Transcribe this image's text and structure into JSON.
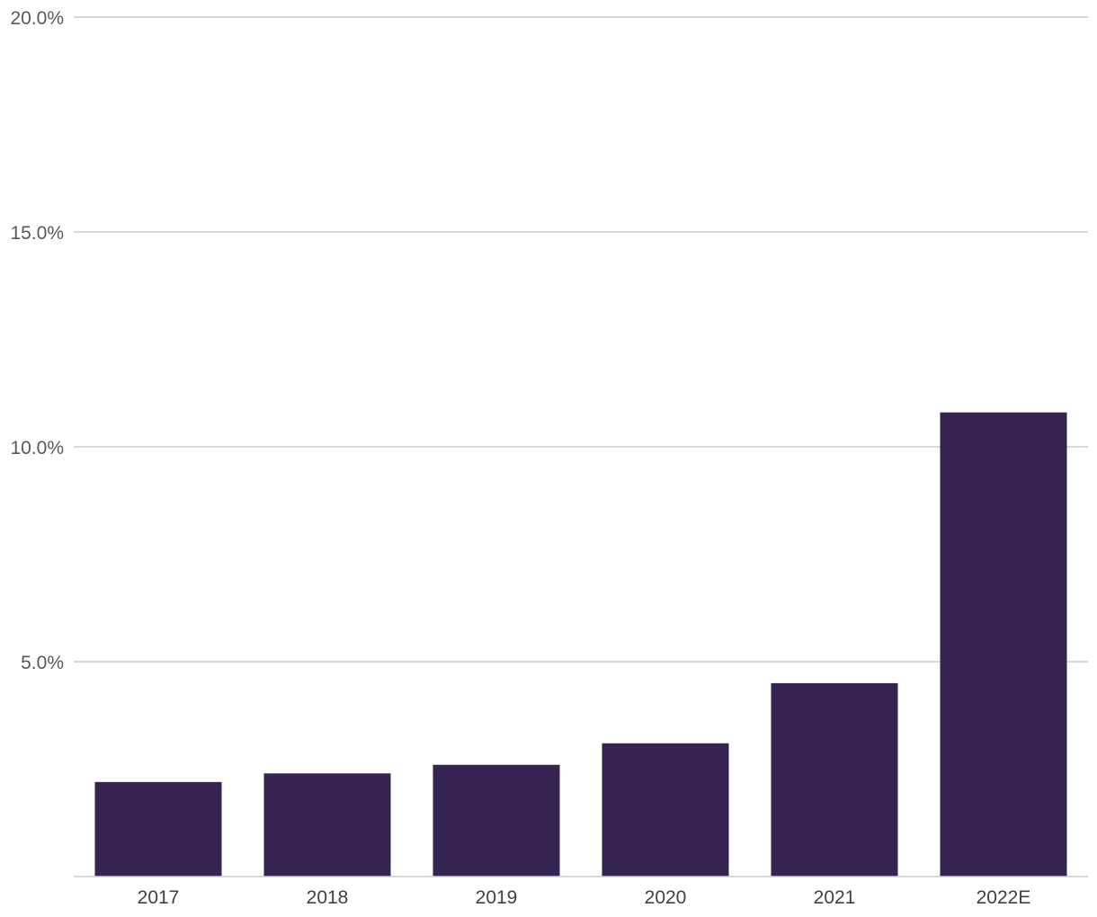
{
  "chart_data": {
    "type": "bar",
    "title": "",
    "xlabel": "",
    "ylabel": "",
    "categories": [
      "2017",
      "2018",
      "2019",
      "2020",
      "2021",
      "2022E"
    ],
    "series": [
      {
        "values": [
          2.2,
          2.4,
          2.6,
          3.1,
          4.5,
          10.8
        ]
      }
    ],
    "ylim": [
      0,
      20
    ],
    "yticks": [
      {
        "value": 5,
        "label": "5.0%"
      },
      {
        "value": 10,
        "label": "10.0%"
      },
      {
        "value": 15,
        "label": "15.0%"
      },
      {
        "value": 20,
        "label": "20.0%"
      }
    ],
    "grid": true,
    "legend": "none",
    "bar_color": "#352452",
    "grid_color": "#c9ccd2"
  }
}
